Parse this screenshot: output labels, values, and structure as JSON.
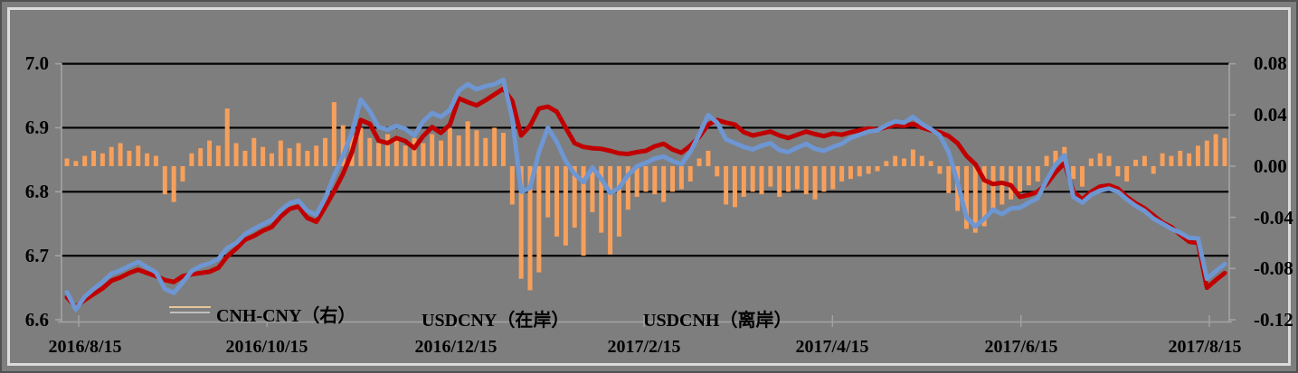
{
  "canvas": {
    "background": "#7E7E7E",
    "inner_frame_color": "#DCDCDC",
    "outer_edge_color": "#515151"
  },
  "chart_data": {
    "type": "combo-line-bar",
    "title": "",
    "x_axis": {
      "tick_labels": [
        "2016/8/15",
        "2016/10/15",
        "2016/12/15",
        "2017/2/15",
        "2017/4/15",
        "2017/6/15",
        "2017/8/15"
      ]
    },
    "left_axis": {
      "min": 6.6,
      "max": 7.0,
      "tick_labels": [
        "7.0",
        "6.9",
        "6.8",
        "6.7",
        "6.6"
      ]
    },
    "right_axis": {
      "min": -0.12,
      "max": 0.08,
      "tick_labels": [
        "0.08",
        "0.04",
        "0.00",
        "-0.04",
        "-0.08",
        "-0.12"
      ]
    },
    "grid": {
      "color": "#000000",
      "levels": [
        7.0,
        6.9,
        6.8,
        6.7
      ]
    },
    "axis_line_color": "#A3A3A3",
    "legend": [
      {
        "label": "CNH-CNY（右）",
        "swatch": "bar",
        "color": "#F7A05C"
      },
      {
        "label": "USDCNY（在岸）",
        "swatch": "none",
        "color": "#C00000"
      },
      {
        "label": "USDCNH（离岸）",
        "swatch": "none",
        "color": "#6D96D2"
      }
    ],
    "series": [
      {
        "name": "CNH-CNY（右）",
        "type": "bar",
        "axis": "right",
        "color": "#F7A05C",
        "values": [
          0.006,
          0.004,
          0.008,
          0.012,
          0.01,
          0.015,
          0.018,
          0.012,
          0.016,
          0.01,
          0.008,
          -0.022,
          -0.028,
          -0.012,
          0.01,
          0.014,
          0.02,
          0.016,
          0.045,
          0.018,
          0.012,
          0.022,
          0.015,
          0.01,
          0.02,
          0.014,
          0.018,
          0.012,
          0.016,
          0.022,
          0.05,
          0.032,
          0.024,
          0.03,
          0.022,
          0.018,
          0.025,
          0.02,
          0.016,
          0.022,
          0.018,
          0.025,
          0.02,
          0.03,
          0.024,
          0.035,
          0.028,
          0.022,
          0.03,
          0.026,
          -0.03,
          -0.088,
          -0.097,
          -0.083,
          -0.04,
          -0.055,
          -0.062,
          -0.048,
          -0.07,
          -0.036,
          -0.052,
          -0.069,
          -0.055,
          -0.034,
          -0.024,
          -0.02,
          -0.022,
          -0.028,
          -0.02,
          -0.018,
          -0.012,
          0.006,
          0.012,
          -0.008,
          -0.03,
          -0.032,
          -0.024,
          -0.02,
          -0.022,
          -0.016,
          -0.024,
          -0.02,
          -0.018,
          -0.022,
          -0.026,
          -0.02,
          -0.018,
          -0.012,
          -0.01,
          -0.008,
          -0.006,
          -0.004,
          0.004,
          0.008,
          0.006,
          0.013,
          0.008,
          0.004,
          -0.006,
          -0.021,
          -0.035,
          -0.049,
          -0.052,
          -0.047,
          -0.033,
          -0.03,
          -0.026,
          -0.02,
          -0.015,
          -0.012,
          0.008,
          0.012,
          0.015,
          -0.01,
          -0.016,
          0.006,
          0.01,
          0.008,
          -0.008,
          -0.012,
          0.005,
          0.008,
          -0.006,
          0.01,
          0.008,
          0.012,
          0.01,
          0.016,
          0.02,
          0.025,
          0.022
        ]
      },
      {
        "name": "USDCNY（在岸）",
        "type": "line",
        "axis": "left",
        "color": "#C00000",
        "values": [
          6.635,
          6.62,
          6.631,
          6.64,
          6.649,
          6.661,
          6.666,
          6.673,
          6.678,
          6.673,
          6.668,
          6.662,
          6.659,
          6.668,
          6.671,
          6.673,
          6.675,
          6.681,
          6.699,
          6.711,
          6.725,
          6.731,
          6.739,
          6.745,
          6.761,
          6.773,
          6.777,
          6.759,
          6.753,
          6.776,
          6.801,
          6.828,
          6.862,
          6.912,
          6.906,
          6.88,
          6.876,
          6.884,
          6.879,
          6.868,
          6.887,
          6.901,
          6.892,
          6.905,
          6.946,
          6.94,
          6.935,
          6.943,
          6.952,
          6.961,
          6.942,
          6.888,
          6.903,
          6.93,
          6.933,
          6.925,
          6.9,
          6.876,
          6.87,
          6.868,
          6.867,
          6.864,
          6.86,
          6.859,
          6.862,
          6.864,
          6.871,
          6.875,
          6.866,
          6.861,
          6.872,
          6.886,
          6.905,
          6.912,
          6.908,
          6.905,
          6.893,
          6.888,
          6.891,
          6.894,
          6.888,
          6.884,
          6.889,
          6.894,
          6.89,
          6.887,
          6.891,
          6.889,
          6.893,
          6.896,
          6.899,
          6.897,
          6.901,
          6.904,
          6.903,
          6.906,
          6.9,
          6.896,
          6.893,
          6.887,
          6.876,
          6.856,
          6.843,
          6.818,
          6.812,
          6.814,
          6.81,
          6.792,
          6.795,
          6.8,
          6.812,
          6.83,
          6.845,
          6.8,
          6.788,
          6.8,
          6.808,
          6.81,
          6.805,
          6.792,
          6.782,
          6.774,
          6.763,
          6.752,
          6.745,
          6.733,
          6.722,
          6.72,
          6.65,
          6.662,
          6.673
        ]
      },
      {
        "name": "USDCNH（离岸）",
        "type": "line",
        "axis": "left",
        "color": "#6D96D2",
        "values": [
          6.643,
          6.616,
          6.636,
          6.648,
          6.659,
          6.672,
          6.677,
          6.684,
          6.69,
          6.682,
          6.674,
          6.648,
          6.642,
          6.658,
          6.676,
          6.684,
          6.688,
          6.695,
          6.712,
          6.72,
          6.734,
          6.742,
          6.749,
          6.756,
          6.771,
          6.782,
          6.786,
          6.77,
          6.764,
          6.79,
          6.825,
          6.856,
          6.893,
          6.944,
          6.926,
          6.901,
          6.897,
          6.903,
          6.898,
          6.888,
          6.91,
          6.923,
          6.917,
          6.928,
          6.958,
          6.968,
          6.96,
          6.965,
          6.968,
          6.975,
          6.915,
          6.8,
          6.806,
          6.862,
          6.9,
          6.878,
          6.848,
          6.828,
          6.815,
          6.838,
          6.82,
          6.798,
          6.806,
          6.826,
          6.84,
          6.845,
          6.852,
          6.855,
          6.848,
          6.843,
          6.862,
          6.89,
          6.92,
          6.908,
          6.882,
          6.876,
          6.87,
          6.866,
          6.872,
          6.876,
          6.865,
          6.862,
          6.869,
          6.875,
          6.867,
          6.864,
          6.87,
          6.875,
          6.884,
          6.889,
          6.894,
          6.896,
          6.904,
          6.91,
          6.908,
          6.917,
          6.906,
          6.898,
          6.888,
          6.862,
          6.815,
          6.76,
          6.746,
          6.758,
          6.772,
          6.765,
          6.774,
          6.775,
          6.783,
          6.79,
          6.818,
          6.842,
          6.857,
          6.792,
          6.783,
          6.795,
          6.802,
          6.805,
          6.8,
          6.788,
          6.778,
          6.77,
          6.758,
          6.75,
          6.742,
          6.736,
          6.728,
          6.727,
          6.664,
          6.676,
          6.687
        ]
      }
    ]
  }
}
